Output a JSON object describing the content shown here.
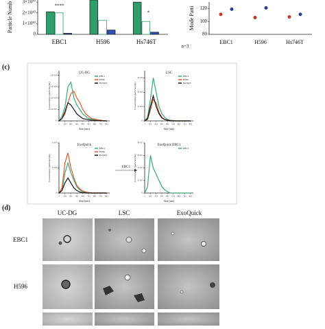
{
  "chart_data": [
    {
      "type": "bar",
      "ylabel": "Particle Numb",
      "categories": [
        "EBC1",
        "H596",
        "Hs746T"
      ],
      "series": [
        {
          "color": "#2e9e6b",
          "values": [
            21000000000,
            32000000000,
            30000000000
          ]
        },
        {
          "color": "#ffffff",
          "values": [
            20000000000,
            13000000000,
            12000000000
          ]
        },
        {
          "color": "#2c4fb8",
          "values": [
            1000000000,
            4000000000,
            2000000000
          ]
        }
      ],
      "ylim": [
        0,
        32000000000
      ],
      "yticks": [
        {
          "value": 0,
          "label": "0"
        },
        {
          "value": 10000000000,
          "label": "1×10¹⁰"
        },
        {
          "value": 20000000000,
          "label": "2×10¹⁰"
        },
        {
          "value": 30000000000,
          "label": "3×10¹⁰"
        }
      ],
      "annotations": [
        "****",
        "*",
        "n=3"
      ]
    },
    {
      "type": "dot",
      "ylabel": "Mode Parti",
      "categories": [
        "EBC1",
        "H596",
        "Hs746T"
      ],
      "series": [
        {
          "color": "#c0392b",
          "values": [
            111,
            106,
            107
          ]
        },
        {
          "color": "#2c3e91",
          "values": [
            119,
            121,
            111
          ]
        }
      ],
      "ylim": [
        80,
        130
      ],
      "yticks": [
        80,
        100,
        120
      ]
    },
    {
      "type": "line",
      "title": "UC-DG",
      "xlabel": "Size (nm)",
      "ylabel": "Concentration (particles/mL)",
      "legend": true,
      "x": [
        1,
        51,
        101,
        151,
        201,
        251,
        301,
        351,
        401,
        451,
        501,
        551,
        601,
        651,
        701,
        751,
        801
      ],
      "xlim": [
        1,
        851
      ],
      "xticks": [
        1,
        101,
        201,
        301,
        401,
        501,
        601,
        701,
        801
      ],
      "ylim": [
        0,
        220000000
      ],
      "yticks": [
        {
          "value": 0,
          "label": "0"
        },
        {
          "value": 50000000,
          "label": "5.0×10⁷"
        },
        {
          "value": 100000000,
          "label": "1.0×10⁸"
        },
        {
          "value": 150000000,
          "label": "1.5×10⁸"
        },
        {
          "value": 200000000,
          "label": "2.0×10⁸"
        }
      ],
      "series": [
        {
          "name": "EBC1",
          "color": "#3aa874",
          "values": [
            0,
            20000000,
            60000000,
            150000000,
            170000000,
            100000000,
            70000000,
            50000000,
            30000000,
            20000000,
            10000000,
            8000000,
            5000000,
            3000000,
            2000000,
            1000000,
            0
          ]
        },
        {
          "name": "H596",
          "color": "#e4572e",
          "values": [
            0,
            10000000,
            30000000,
            80000000,
            120000000,
            130000000,
            100000000,
            80000000,
            50000000,
            30000000,
            20000000,
            10000000,
            8000000,
            5000000,
            3000000,
            1000000,
            0
          ]
        },
        {
          "name": "Hs746T",
          "color": "#111111",
          "values": [
            0,
            10000000,
            40000000,
            80000000,
            70000000,
            50000000,
            30000000,
            20000000,
            10000000,
            8000000,
            5000000,
            3000000,
            2000000,
            1000000,
            1000000,
            0,
            0
          ]
        }
      ]
    },
    {
      "type": "line",
      "title": "LSC",
      "xlabel": "Size (nm)",
      "ylabel": "Concentration (particles/mL)",
      "legend": true,
      "x": [
        1,
        51,
        101,
        151,
        201,
        251,
        301,
        351,
        401,
        451,
        501,
        551,
        601,
        651,
        701,
        751,
        801
      ],
      "xlim": [
        1,
        851
      ],
      "xticks": [
        1,
        101,
        201,
        301,
        401,
        501,
        601,
        701,
        801
      ],
      "ylim": [
        0,
        700000000
      ],
      "yticks": [
        {
          "value": 0,
          "label": "0"
        },
        {
          "value": 200000000,
          "label": "2×10⁸"
        },
        {
          "value": 400000000,
          "label": "4×10⁸"
        },
        {
          "value": 600000000,
          "label": "6×10⁸"
        }
      ],
      "series": [
        {
          "name": "EBC1",
          "color": "#3aa874",
          "values": [
            0,
            50000000,
            300000000,
            600000000,
            400000000,
            200000000,
            100000000,
            50000000,
            20000000,
            10000000,
            5000000,
            0,
            0,
            0,
            0,
            0,
            0
          ]
        },
        {
          "name": "H596",
          "color": "#e4572e",
          "values": [
            0,
            20000000,
            150000000,
            300000000,
            250000000,
            120000000,
            50000000,
            20000000,
            10000000,
            5000000,
            0,
            0,
            0,
            0,
            0,
            0,
            0
          ]
        },
        {
          "name": "Hs746T",
          "color": "#111111",
          "values": [
            0,
            30000000,
            200000000,
            350000000,
            200000000,
            100000000,
            40000000,
            20000000,
            10000000,
            0,
            0,
            0,
            0,
            0,
            0,
            0,
            0
          ]
        }
      ]
    },
    {
      "type": "line",
      "title": "ExoQuick",
      "xlabel": "Size (nm)",
      "ylabel": "Concentration (particles/mL)",
      "legend": true,
      "x": [
        1,
        51,
        101,
        151,
        201,
        251,
        301,
        351,
        401,
        451,
        501,
        551,
        601,
        651,
        701,
        751,
        801
      ],
      "xlim": [
        1,
        851
      ],
      "xticks": [
        1,
        101,
        201,
        301,
        401,
        501,
        601,
        701,
        801
      ],
      "ylim": [
        0,
        1000000000
      ],
      "yticks": [
        {
          "value": 0,
          "label": "0"
        },
        {
          "value": 500000000,
          "label": "5×10⁸"
        },
        {
          "value": 1000000000,
          "label": "1×10⁹"
        }
      ],
      "series": [
        {
          "name": "EBC1",
          "color": "#3aa874",
          "values": [
            0,
            50000000,
            400000000,
            600000000,
            400000000,
            250000000,
            120000000,
            60000000,
            30000000,
            10000000,
            5000000,
            0,
            0,
            0,
            0,
            0,
            0
          ]
        },
        {
          "name": "H596",
          "color": "#e4572e",
          "values": [
            0,
            100000000,
            600000000,
            800000000,
            500000000,
            300000000,
            150000000,
            80000000,
            40000000,
            20000000,
            10000000,
            0,
            0,
            0,
            0,
            0,
            0
          ]
        },
        {
          "name": "Hs746T",
          "color": "#111111",
          "values": [
            0,
            50000000,
            200000000,
            300000000,
            200000000,
            100000000,
            50000000,
            20000000,
            10000000,
            0,
            0,
            0,
            0,
            0,
            0,
            0,
            0
          ]
        }
      ]
    },
    {
      "type": "line",
      "title": "ExoQuick EBC1",
      "xlabel": "Size (nm)",
      "ylabel": "Concentration (particles/mL)",
      "legend": true,
      "x": [
        1,
        51,
        101,
        151,
        201,
        251,
        301,
        351,
        401,
        451,
        501,
        551,
        601,
        651,
        701,
        751,
        801
      ],
      "xlim": [
        1,
        851
      ],
      "xticks": [
        1,
        101,
        201,
        301,
        401,
        501,
        601,
        701,
        801
      ],
      "ylim": [
        0,
        80000000
      ],
      "yticks": [
        {
          "value": 0,
          "label": "0"
        },
        {
          "value": 20000000,
          "label": "2×10⁷"
        },
        {
          "value": 40000000,
          "label": "4×10⁷"
        },
        {
          "value": 60000000,
          "label": "6×10⁷"
        },
        {
          "value": 80000000,
          "label": "8×10⁷"
        }
      ],
      "series": [
        {
          "name": "EBC1",
          "color": "#3aa874",
          "values": [
            0,
            10000000,
            60000000,
            40000000,
            30000000,
            20000000,
            10000000,
            5000000,
            2000000,
            0,
            0,
            0,
            0,
            0,
            0,
            0,
            0
          ]
        }
      ]
    }
  ],
  "panels": {
    "c": {
      "label": "(c)",
      "arrow_label": "EBC1"
    },
    "d": {
      "label": "(d)",
      "columns": [
        "UC-DG",
        "LSC",
        "ExoQuick"
      ],
      "rows": [
        "EBC1",
        "H596"
      ]
    }
  }
}
